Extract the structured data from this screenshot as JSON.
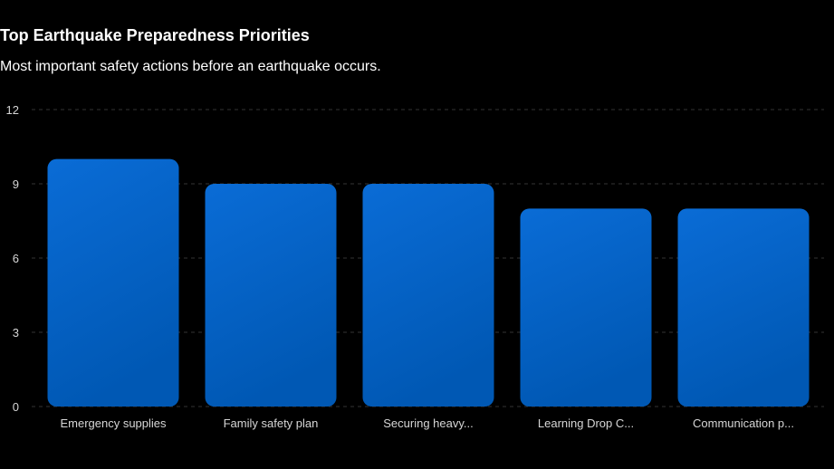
{
  "chart_data": {
    "type": "bar",
    "title": "Top Earthquake Preparedness Priorities",
    "subtitle": "Most important safety actions before an earthquake occurs.",
    "categories": [
      "Emergency supplies",
      "Family safety plan",
      "Securing heavy...",
      "Learning Drop C...",
      "Communication p..."
    ],
    "values": [
      10,
      9,
      9,
      8,
      8
    ],
    "ylim": [
      0,
      12
    ],
    "yticks": [
      0,
      3,
      6,
      9,
      12
    ],
    "grid": true,
    "legend": "none"
  },
  "colors": {
    "background": "#000000",
    "bar_top": "#0a6cd6",
    "bar_bottom": "#0058b4",
    "grid": "#333333",
    "tick_text": "#d6d6d6"
  }
}
